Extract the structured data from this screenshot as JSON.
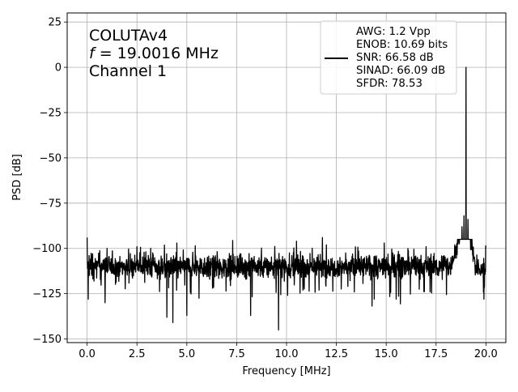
{
  "chart_data": {
    "type": "line",
    "title": "",
    "xlabel": "Frequency [MHz]",
    "ylabel": "PSD [dB]",
    "xlim": [
      -1.0,
      21.0
    ],
    "ylim": [
      -152,
      30
    ],
    "xticks": [
      0.0,
      2.5,
      5.0,
      7.5,
      10.0,
      12.5,
      15.0,
      17.5,
      20.0
    ],
    "xtick_labels": [
      "0.0",
      "2.5",
      "5.0",
      "7.5",
      "10.0",
      "12.5",
      "15.0",
      "17.5",
      "20.0"
    ],
    "yticks": [
      25,
      0,
      -25,
      -50,
      -75,
      -100,
      -125,
      -150
    ],
    "ytick_labels": [
      "25",
      "0",
      "−25",
      "−50",
      "−75",
      "−100",
      "−125",
      "−150"
    ],
    "grid": true,
    "annotation_lines": [
      "COLUTAv4",
      "= 19.0016 MHz",
      "Channel 1"
    ],
    "annotation_italic_symbol": "f",
    "legend": {
      "placement": "top-right",
      "lines": [
        "AWG: 1.2 Vpp",
        "ENOB: 10.69 bits",
        "SNR: 66.58 dB",
        "SINAD: 66.09 dB",
        "SFDR: 78.53"
      ],
      "line_color": "#000000"
    },
    "series": [
      {
        "color": "#000000",
        "noise_floor_db": -110,
        "noise_range_db": [
          -145,
          -95
        ],
        "frequency_range_mhz": [
          0.0,
          20.0
        ],
        "fundamental": {
          "x": 19.0016,
          "y": 0.0
        },
        "near_fundamental_skirt": [
          {
            "x": 18.5,
            "y": -100
          },
          {
            "x": 18.8,
            "y": -88
          },
          {
            "x": 18.9,
            "y": -82
          },
          {
            "x": 19.1,
            "y": -84
          },
          {
            "x": 19.3,
            "y": -95
          }
        ],
        "notable_dips": [
          {
            "x": 0.05,
            "y": -128
          },
          {
            "x": 0.9,
            "y": -130
          },
          {
            "x": 4.3,
            "y": -141
          },
          {
            "x": 4.0,
            "y": -138
          },
          {
            "x": 5.0,
            "y": -137
          },
          {
            "x": 8.2,
            "y": -137
          },
          {
            "x": 9.6,
            "y": -145
          },
          {
            "x": 14.4,
            "y": -128
          },
          {
            "x": 15.5,
            "y": -128
          },
          {
            "x": 19.9,
            "y": -128
          }
        ],
        "notable_spikes": [
          {
            "x": 0.0,
            "y": -94
          },
          {
            "x": 1.0,
            "y": -100
          },
          {
            "x": 2.5,
            "y": -99
          },
          {
            "x": 4.5,
            "y": -97
          },
          {
            "x": 10.5,
            "y": -96
          },
          {
            "x": 11.8,
            "y": -94
          },
          {
            "x": 12.0,
            "y": -98
          },
          {
            "x": 14.9,
            "y": -97
          },
          {
            "x": 17.0,
            "y": -99
          },
          {
            "x": 20.0,
            "y": -100
          }
        ]
      }
    ]
  }
}
